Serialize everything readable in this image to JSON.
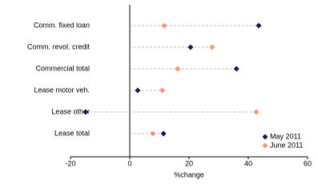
{
  "chart_data": {
    "type": "dot",
    "categories": [
      "Comm. fixed loan",
      "Comm. revol. credit",
      "Commercial total",
      "Lease motor veh.",
      "Lease other",
      "Lease total"
    ],
    "series": [
      {
        "name": "May 2011",
        "color": "#0a1a5c",
        "values": [
          43.5,
          20.5,
          36,
          2.7,
          -14.9,
          11.4
        ]
      },
      {
        "name": "June 2011",
        "color": "#f4966e",
        "values": [
          11.6,
          27.8,
          16.2,
          11,
          42.7,
          7.8
        ]
      }
    ],
    "xlabel": "%change",
    "xlim": [
      -20,
      60
    ],
    "xticks": [
      -20,
      0,
      20,
      40,
      60
    ],
    "legend": "lower right"
  }
}
